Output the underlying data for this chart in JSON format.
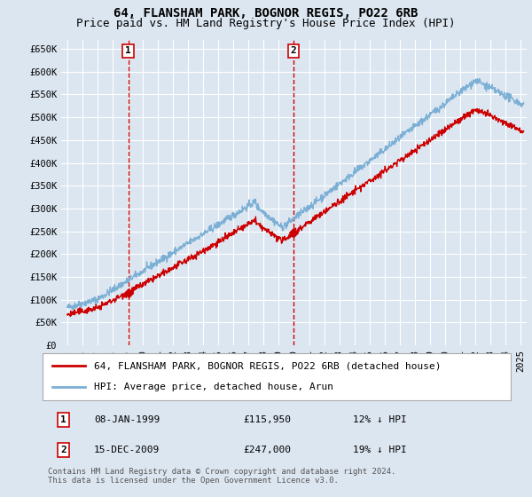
{
  "title": "64, FLANSHAM PARK, BOGNOR REGIS, PO22 6RB",
  "subtitle": "Price paid vs. HM Land Registry's House Price Index (HPI)",
  "ylim": [
    0,
    670000
  ],
  "yticks": [
    0,
    50000,
    100000,
    150000,
    200000,
    250000,
    300000,
    350000,
    400000,
    450000,
    500000,
    550000,
    600000,
    650000
  ],
  "ytick_labels": [
    "£0",
    "£50K",
    "£100K",
    "£150K",
    "£200K",
    "£250K",
    "£300K",
    "£350K",
    "£400K",
    "£450K",
    "£500K",
    "£550K",
    "£600K",
    "£650K"
  ],
  "background_color": "#dce6f1",
  "plot_bg_color": "#dce6f1",
  "grid_color": "#ffffff",
  "sale1_year": 1999.03,
  "sale1_price": 115950,
  "sale2_year": 2009.96,
  "sale2_price": 247000,
  "sale_color": "#cc0000",
  "hpi_color": "#7bafd4",
  "legend_entry1": "64, FLANSHAM PARK, BOGNOR REGIS, PO22 6RB (detached house)",
  "legend_entry2": "HPI: Average price, detached house, Arun",
  "annotation1_num": "1",
  "annotation1_date": "08-JAN-1999",
  "annotation1_price": "£115,950",
  "annotation1_hpi": "12% ↓ HPI",
  "annotation2_num": "2",
  "annotation2_date": "15-DEC-2009",
  "annotation2_price": "£247,000",
  "annotation2_hpi": "19% ↓ HPI",
  "footer": "Contains HM Land Registry data © Crown copyright and database right 2024.\nThis data is licensed under the Open Government Licence v3.0.",
  "title_fontsize": 10,
  "subtitle_fontsize": 9,
  "tick_fontsize": 7.5,
  "legend_fontsize": 8,
  "annotation_fontsize": 8,
  "footer_fontsize": 6.5
}
